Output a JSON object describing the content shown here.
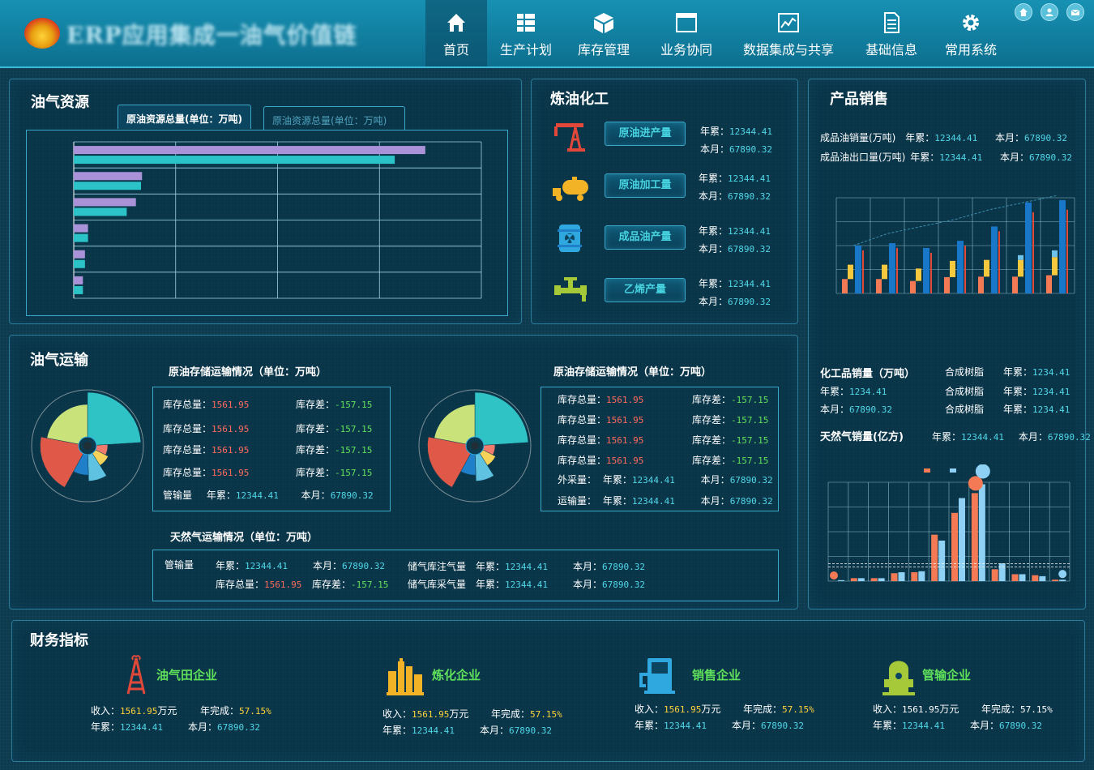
{
  "header": {
    "title": "ERP应用集成一油气价值链",
    "nav": [
      {
        "label": "首页",
        "icon": "home-icon",
        "active": true
      },
      {
        "label": "生产计划",
        "icon": "grid-icon"
      },
      {
        "label": "库存管理",
        "icon": "box-icon"
      },
      {
        "label": "业务协同",
        "icon": "window-icon"
      },
      {
        "label": "数据集成与共享",
        "icon": "line-chart-icon"
      },
      {
        "label": "基础信息",
        "icon": "document-icon"
      },
      {
        "label": "常用系统",
        "icon": "gear-icon"
      }
    ],
    "top_icons": [
      "home-icon",
      "user-icon",
      "mail-icon"
    ]
  },
  "resources": {
    "title": "油气资源",
    "tab_active": "原油资源总量(单位：万吨)",
    "tab_inactive": "原油资源总量(单位：万吨)"
  },
  "refining": {
    "title": "炼油化工",
    "items": [
      {
        "label": "原油进产量",
        "icon": "oil-derrick-icon",
        "year_label": "年累：",
        "year": "12344.41",
        "month_label": "本月：",
        "month": "67890.32"
      },
      {
        "label": "原油加工量",
        "icon": "tanker-truck-icon",
        "year_label": "年累：",
        "year": "12344.41",
        "month_label": "本月：",
        "month": "67890.32"
      },
      {
        "label": "成品油产量",
        "icon": "barrel-icon",
        "year_label": "年累：",
        "year": "12344.41",
        "month_label": "本月：",
        "month": "67890.32"
      },
      {
        "label": "乙烯产量",
        "icon": "pipe-valve-icon",
        "year_label": "年累：",
        "year": "12344.41",
        "month_label": "本月：",
        "month": "67890.32"
      }
    ]
  },
  "sales": {
    "title": "产品销售",
    "rows": [
      {
        "label": "成品油销量(万吨)",
        "year_label": "年累：",
        "year": "12344.41",
        "month_label": "本月：",
        "month": "67890.32"
      },
      {
        "label": "成品油出口量(万吨)",
        "year_label": "年累：",
        "year": "12344.41",
        "month_label": "本月：",
        "month": "67890.32"
      }
    ],
    "chem_title": "化工品销量（万吨）",
    "chem_rows": [
      {
        "name": "合成树脂",
        "label": "年累：",
        "value": "1234.41"
      },
      {
        "name": "合成树脂",
        "label": "年累：",
        "value": "1234.41"
      },
      {
        "name": "合成树脂",
        "label": "年累：",
        "value": "1234.41"
      }
    ],
    "chem_year_label": "年累：",
    "chem_year": "1234.41",
    "chem_month_label": "本月：",
    "chem_month": "67890.32",
    "gas_title": "天然气销量(亿方)",
    "gas_year_label": "年累：",
    "gas_year": "12344.41",
    "gas_month_label": "本月：",
    "gas_month": "67890.32"
  },
  "transport": {
    "title": "油气运输",
    "left_title": "原油存储运输情况（单位：万吨）",
    "right_title": "原油存储运输情况（单位：万吨）",
    "gas_title": "天然气运输情况（单位：万吨）",
    "left_rows": [
      {
        "a_label": "库存总量：",
        "a": "1561.95",
        "b_label": "库存差：",
        "b": "-157.15"
      },
      {
        "a_label": "库存总量：",
        "a": "1561.95",
        "b_label": "库存差：",
        "b": "-157.15"
      },
      {
        "a_label": "库存总量：",
        "a": "1561.95",
        "b_label": "库存差：",
        "b": "-157.15"
      },
      {
        "a_label": "库存总量：",
        "a": "1561.95",
        "b_label": "库存差：",
        "b": "-157.15"
      }
    ],
    "left_pipe": {
      "name": "管输量",
      "year_label": "年累：",
      "year": "12344.41",
      "month_label": "本月：",
      "month": "67890.32"
    },
    "right_rows": [
      {
        "a_label": "库存总量：",
        "a": "1561.95",
        "b_label": "库存差：",
        "b": "-157.15"
      },
      {
        "a_label": "库存总量：",
        "a": "1561.95",
        "b_label": "库存差：",
        "b": "-157.15"
      },
      {
        "a_label": "库存总量：",
        "a": "1561.95",
        "b_label": "库存差：",
        "b": "-157.15"
      },
      {
        "a_label": "库存总量：",
        "a": "1561.95",
        "b_label": "库存差：",
        "b": "-157.15"
      }
    ],
    "right_extra": [
      {
        "name": "外采量：",
        "year_label": "年累：",
        "year": "12344.41",
        "month_label": "本月：",
        "month": "67890.32"
      },
      {
        "name": "运输量：",
        "year_label": "年累：",
        "year": "12344.41",
        "month_label": "本月：",
        "month": "67890.32"
      }
    ],
    "gas": {
      "pipe_name": "管输量",
      "year_label": "年累：",
      "year": "12344.41",
      "month_label": "本月：",
      "month": "67890.32",
      "stock_label": "库存总量：",
      "stock": "1561.95",
      "diff_label": "库存差：",
      "diff": "-157.15",
      "inject_name": "储气库注气量",
      "inject_year": "12344.41",
      "inject_month": "67890.32",
      "extract_name": "储气库采气量",
      "extract_year": "12344.41",
      "extract_month": "67890.32"
    }
  },
  "finance": {
    "title": "财务指标",
    "items": [
      {
        "name": "油气田企业",
        "icon": "oil-rig-icon",
        "income_label": "收入：",
        "income": "1561.95",
        "unit": "万元",
        "done_label": "年完成：",
        "done": "57.15%",
        "year_label": "年累：",
        "year": "12344.41",
        "month_label": "本月：",
        "month": "67890.32"
      },
      {
        "name": "炼化企业",
        "icon": "refinery-icon",
        "income_label": "收入：",
        "income": "1561.95",
        "unit": "万元",
        "done_label": "年完成：",
        "done": "57.15%",
        "year_label": "年累：",
        "year": "12344.41",
        "month_label": "本月：",
        "month": "67890.32"
      },
      {
        "name": "销售企业",
        "icon": "fuel-pump-icon",
        "income_label": "收入：",
        "income": "1561.95",
        "unit": "万元",
        "done_label": "年完成：",
        "done": "57.15%",
        "year_label": "年累：",
        "year": "12344.41",
        "month_label": "本月：",
        "month": "67890.32"
      },
      {
        "name": "管输企业",
        "icon": "pipeline-tank-icon",
        "income_label": "收入：",
        "income": "1561.95",
        "unit": "万元",
        "done_label": "年完成：",
        "done": "57.15%",
        "year_label": "年累：",
        "year": "12344.41",
        "month_label": "本月：",
        "month": "67890.32"
      }
    ]
  },
  "chart_data": [
    {
      "type": "bar",
      "orientation": "horizontal",
      "categories": [
        "",
        "",
        "",
        "",
        "",
        ""
      ],
      "series": [
        {
          "values": [
            345,
            67,
            61,
            14,
            11,
            9
          ],
          "color": "#a992d8"
        },
        {
          "values": [
            315,
            66,
            52,
            14,
            11,
            9
          ],
          "color": "#2cc3c8"
        }
      ],
      "xlim": [
        0,
        400
      ],
      "grid": true
    },
    {
      "type": "pie",
      "variant": "rose",
      "values": [
        30,
        8,
        10,
        18,
        14,
        26,
        22
      ],
      "colors": [
        "#2fc3c6",
        "#f07a6c",
        "#f5d25a",
        "#5fc2e0",
        "#1f7fc8",
        "#e05848",
        "#c9e27a"
      ]
    },
    {
      "type": "pie",
      "variant": "rose",
      "values": [
        30,
        8,
        10,
        18,
        14,
        26,
        22
      ],
      "colors": [
        "#2fc3c6",
        "#f07a6c",
        "#f5d25a",
        "#5fc2e0",
        "#1f7fc8",
        "#e05848",
        "#c9e27a"
      ]
    },
    {
      "type": "bar",
      "stacked_groups": true,
      "categories": [
        "",
        "",
        "",
        "",
        "",
        "",
        ""
      ],
      "series": [
        {
          "values": [
            600,
            600,
            520,
            680,
            700,
            700,
            760
          ],
          "color": "#f47a55"
        },
        {
          "values": [
            600,
            600,
            520,
            680,
            700,
            700,
            760
          ],
          "color": "#f6c93f"
        },
        {
          "values": [
            800,
            800,
            900,
            1000,
            1100,
            1600,
            1800
          ],
          "color": "#6fc2e8"
        },
        {
          "values": [
            2000,
            2100,
            1900,
            2200,
            2800,
            3800,
            3900
          ],
          "color": "#1877c9"
        },
        {
          "values": [
            1800,
            1900,
            1700,
            2000,
            2600,
            3400,
            3500
          ],
          "color": "#e04a3b"
        }
      ],
      "ylim": [
        0,
        4000
      ],
      "trend": [
        2000,
        2500,
        2800,
        3100,
        3500,
        3800,
        4100
      ],
      "grid": true
    },
    {
      "type": "bar",
      "categories": [
        "",
        "",
        "",
        "",
        "",
        "",
        "",
        "",
        "",
        "",
        "",
        ""
      ],
      "series": [
        {
          "values": [
            0,
            6,
            6,
            16,
            18,
            94,
            138,
            178,
            24,
            14,
            12,
            3
          ],
          "color": "#f47a55"
        },
        {
          "values": [
            2,
            6,
            6,
            18,
            20,
            82,
            168,
            196,
            36,
            14,
            10,
            3
          ],
          "color": "#8fd0f5"
        }
      ],
      "ylim": [
        0,
        200
      ],
      "markLine": 35,
      "grid": true
    }
  ]
}
